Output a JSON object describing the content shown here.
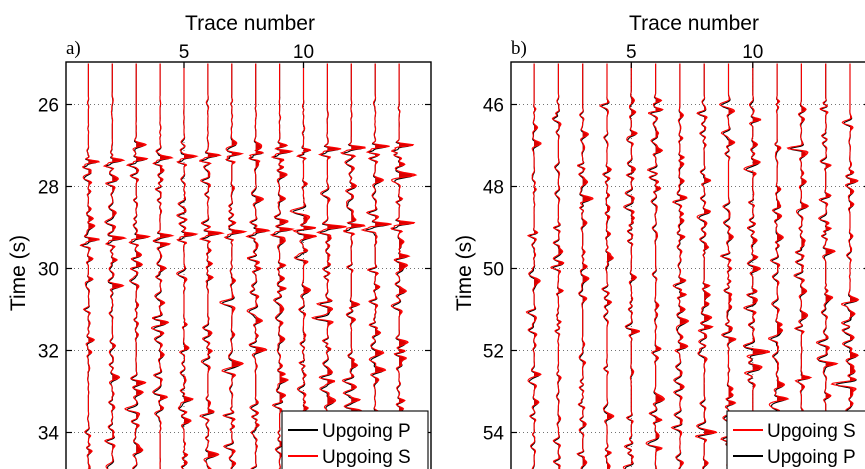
{
  "chart_data": [
    {
      "panel_label": "a)",
      "type": "line",
      "orientation": "wiggle-traces",
      "xlabel": "Trace number",
      "ylabel": "Time (s)",
      "x_ticks": [
        5,
        10
      ],
      "xlim": [
        -0.5,
        14.5
      ],
      "y_ticks": [
        26,
        28,
        30,
        32,
        34
      ],
      "ylim": [
        25,
        35.2
      ],
      "y_inverted": true,
      "grid": "dotted",
      "traces": [
        1,
        2,
        3,
        4,
        5,
        6,
        7,
        8,
        9,
        10,
        11,
        12,
        13,
        14
      ],
      "series": [
        {
          "name": "Upgoing P",
          "color": "#000000"
        },
        {
          "name": "Upgoing S",
          "color": "#ff0000"
        }
      ],
      "events": [
        {
          "series": "Upgoing P",
          "t_first_trace": 27.4,
          "t_last_trace": 27.0
        },
        {
          "series": "Upgoing P",
          "t_first_trace": 29.3,
          "t_last_trace": 28.9
        }
      ],
      "legend_position": "bottom-right"
    },
    {
      "panel_label": "b)",
      "type": "line",
      "orientation": "wiggle-traces",
      "xlabel": "Trace number",
      "ylabel": "Time (s)",
      "x_ticks": [
        5,
        10
      ],
      "xlim": [
        -0.5,
        14.5
      ],
      "y_ticks": [
        46,
        48,
        50,
        52,
        54
      ],
      "ylim": [
        45,
        55.2
      ],
      "y_inverted": true,
      "grid": "dotted",
      "traces": [
        1,
        2,
        3,
        4,
        5,
        6,
        7,
        8,
        9,
        10,
        11,
        12,
        13,
        14
      ],
      "series": [
        {
          "name": "Upgoing S",
          "color": "#ff0000"
        },
        {
          "name": "Upgoing P",
          "color": "#000000"
        }
      ],
      "events": [],
      "legend_position": "bottom-right"
    }
  ]
}
